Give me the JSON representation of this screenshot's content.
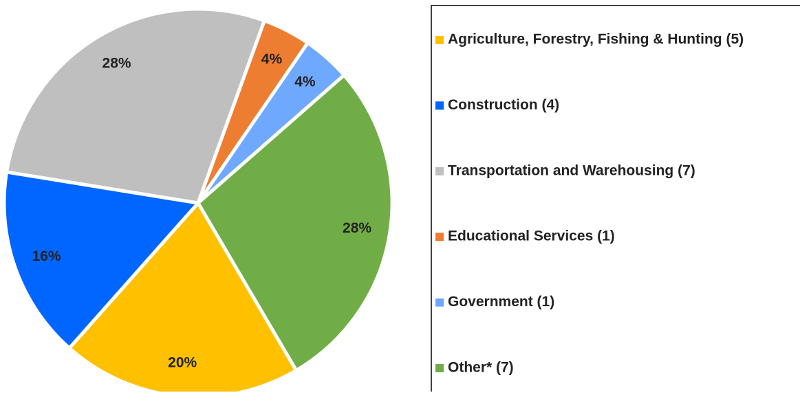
{
  "chart_data": {
    "type": "pie",
    "categories": [
      "Agriculture, Forestry, Fishing & Hunting (5)",
      "Construction (4)",
      "Transportation and Warehousing (7)",
      "Educational Services (1)",
      "Government (1)",
      "Other* (7)"
    ],
    "values": [
      20,
      16,
      28,
      4,
      4,
      28
    ],
    "value_labels": [
      "20%",
      "16%",
      "28%",
      "4%",
      "4%",
      "28%"
    ],
    "colors": [
      "#ffc000",
      "#0066ff",
      "#bfbfbf",
      "#ed7d31",
      "#6fa8ff",
      "#70ad47"
    ],
    "legend": "right"
  }
}
